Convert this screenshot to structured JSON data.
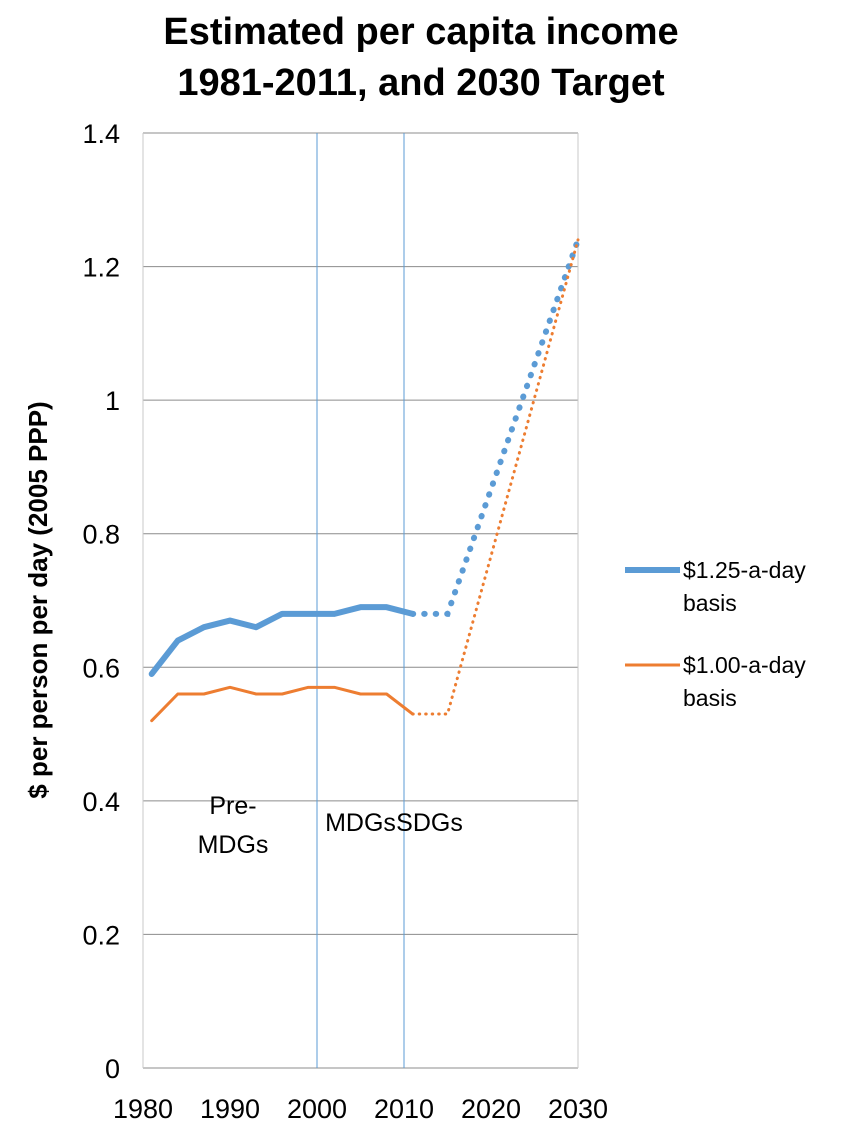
{
  "chart_data": {
    "type": "line",
    "title": [
      "Estimated per capita income",
      "1981-2011, and 2030 Target"
    ],
    "xlabel": "",
    "ylabel": "$ per person per day (2005 PPP)",
    "xlim": [
      1980,
      2030
    ],
    "ylim": [
      0,
      1.4
    ],
    "x_ticks": [
      1980,
      1990,
      2000,
      2010,
      2020,
      2030
    ],
    "y_ticks": [
      0,
      0.2,
      0.4,
      0.6,
      0.8,
      1,
      1.2,
      1.4
    ],
    "y_tick_labels": [
      "0",
      "0.2",
      "0.4",
      "0.6",
      "0.8",
      "1",
      "1.2",
      "1.4"
    ],
    "grid": "horizontal",
    "vertical_markers": [
      2000,
      2010
    ],
    "era_labels": [
      {
        "lines": [
          "Pre-",
          "MDGs"
        ],
        "x": 1990,
        "y": 0.38
      },
      {
        "lines": [
          "MDGs"
        ],
        "x": 2005,
        "y": 0.355
      },
      {
        "lines": [
          "SDGs"
        ],
        "x": 2015,
        "y": 0.355
      }
    ],
    "legend_position": "right",
    "series": [
      {
        "name": "$1.25-a-day basis",
        "legend_lines": [
          "$1.25-a-day",
          "basis"
        ],
        "color": "#5b9bd5",
        "width": 6,
        "values": [
          {
            "x": 1981,
            "y": 0.59
          },
          {
            "x": 1984,
            "y": 0.64
          },
          {
            "x": 1987,
            "y": 0.66
          },
          {
            "x": 1990,
            "y": 0.67
          },
          {
            "x": 1993,
            "y": 0.66
          },
          {
            "x": 1996,
            "y": 0.68
          },
          {
            "x": 1999,
            "y": 0.68
          },
          {
            "x": 2002,
            "y": 0.68
          },
          {
            "x": 2005,
            "y": 0.69
          },
          {
            "x": 2008,
            "y": 0.69
          },
          {
            "x": 2011,
            "y": 0.68
          }
        ],
        "projection": [
          {
            "x": 2011,
            "y": 0.68
          },
          {
            "x": 2015,
            "y": 0.68
          },
          {
            "x": 2030,
            "y": 1.24
          }
        ]
      },
      {
        "name": "$1.00-a-day basis",
        "legend_lines": [
          "$1.00-a-day",
          "basis"
        ],
        "color": "#ed7d31",
        "width": 3,
        "values": [
          {
            "x": 1981,
            "y": 0.52
          },
          {
            "x": 1984,
            "y": 0.56
          },
          {
            "x": 1987,
            "y": 0.56
          },
          {
            "x": 1990,
            "y": 0.57
          },
          {
            "x": 1993,
            "y": 0.56
          },
          {
            "x": 1996,
            "y": 0.56
          },
          {
            "x": 1999,
            "y": 0.57
          },
          {
            "x": 2002,
            "y": 0.57
          },
          {
            "x": 2005,
            "y": 0.56
          },
          {
            "x": 2008,
            "y": 0.56
          },
          {
            "x": 2011,
            "y": 0.53
          }
        ],
        "projection": [
          {
            "x": 2011,
            "y": 0.53
          },
          {
            "x": 2015,
            "y": 0.53
          },
          {
            "x": 2030,
            "y": 1.24
          }
        ]
      }
    ]
  }
}
